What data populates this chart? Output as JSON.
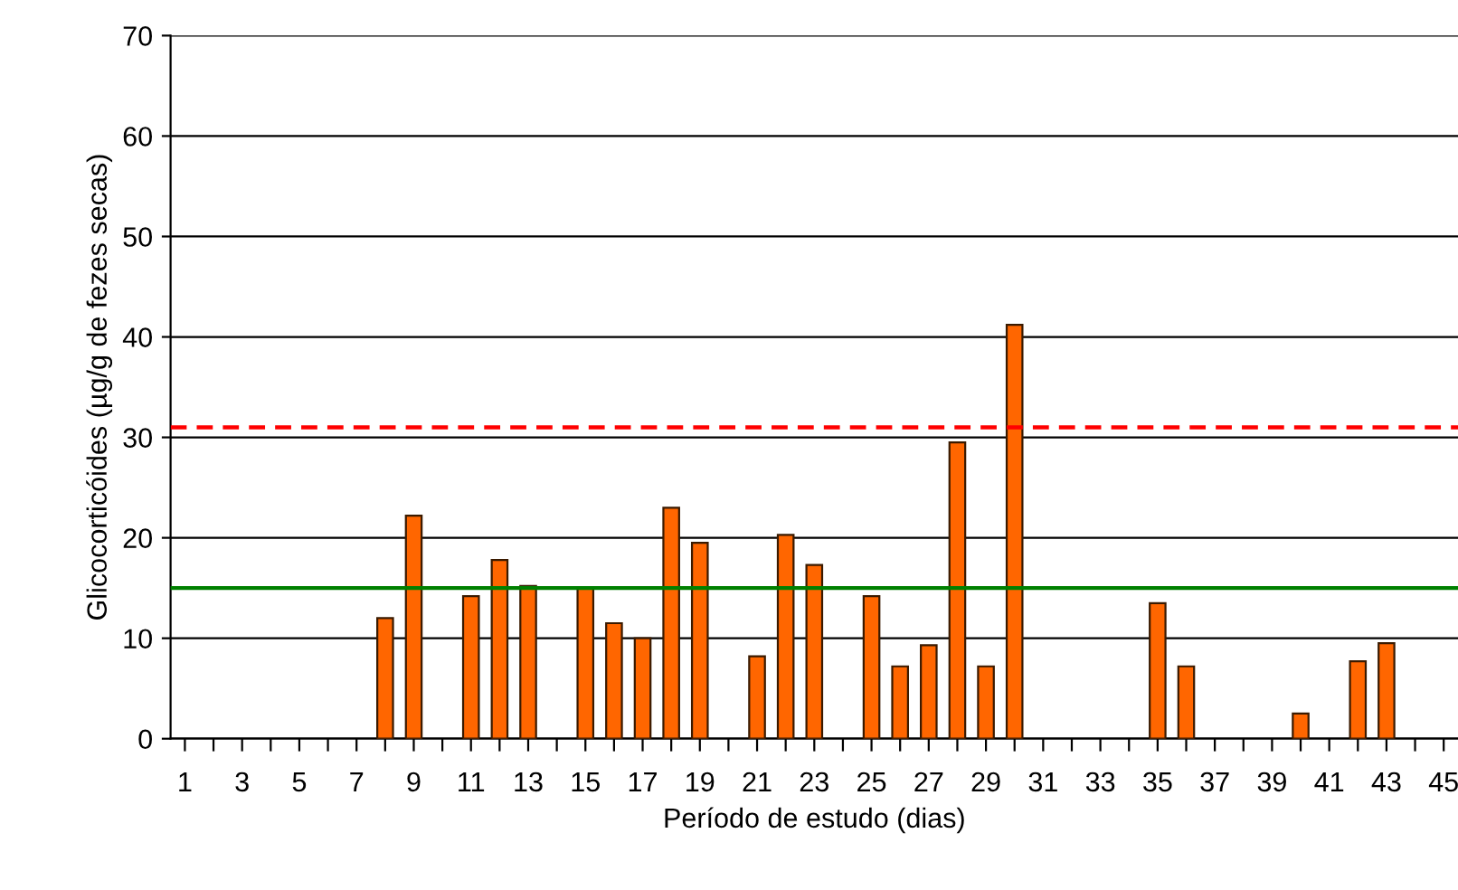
{
  "chart_data": {
    "type": "bar",
    "xlabel": "Período de estudo (dias)",
    "ylabel": "Glicocorticóides (µg/g de fezes secas)",
    "categories": [
      "1",
      null,
      "3",
      null,
      "5",
      null,
      "7",
      null,
      "9",
      null,
      "11",
      null,
      "13",
      null,
      "15",
      null,
      "17",
      null,
      "19",
      null,
      "21",
      null,
      "23",
      null,
      "25",
      null,
      "27",
      null,
      "29",
      null,
      "31",
      null,
      "33",
      null,
      "35",
      null,
      "37",
      null,
      "39",
      null,
      "41",
      null,
      "43",
      null,
      "45"
    ],
    "series": [
      {
        "color": "#ff6600",
        "values": [
          null,
          null,
          null,
          null,
          null,
          null,
          null,
          12,
          22.2,
          null,
          14.2,
          17.8,
          15.2,
          null,
          15.1,
          11.5,
          10,
          23,
          19.5,
          null,
          8.2,
          20.3,
          17.3,
          null,
          14.2,
          7.2,
          9.3,
          29.5,
          7.2,
          41.2,
          null,
          null,
          null,
          null,
          13.5,
          7.2,
          null,
          null,
          null,
          2.5,
          null,
          7.7,
          9.5,
          null,
          null
        ]
      }
    ],
    "ylim": [
      0,
      70
    ],
    "yticks": [
      0,
      10,
      20,
      30,
      40,
      50,
      60,
      70
    ],
    "grid": "y",
    "ref_lines": [
      {
        "axis": "y",
        "value": 31,
        "color": "#ff0000",
        "line_style": "dashed"
      },
      {
        "axis": "y",
        "value": 15,
        "color": "#008000",
        "line_style": "solid"
      }
    ]
  }
}
